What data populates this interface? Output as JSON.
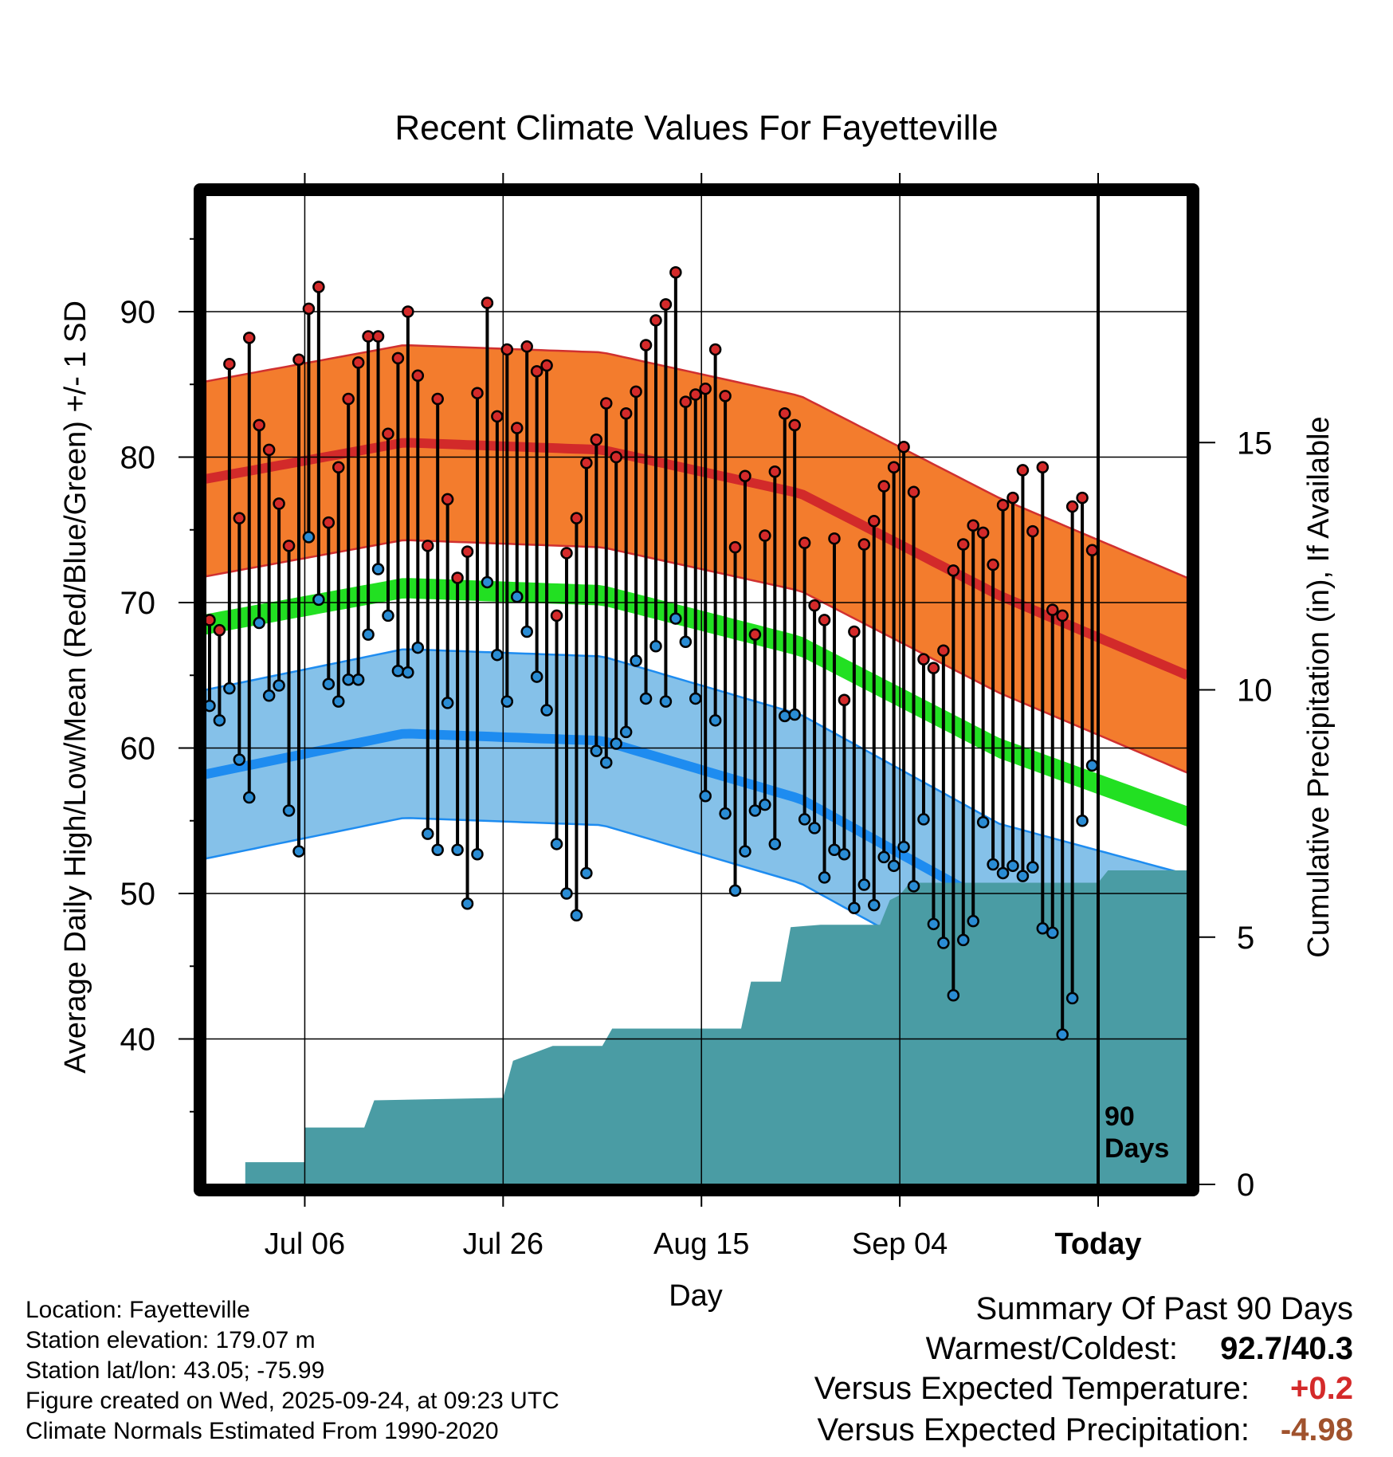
{
  "chart_data": {
    "type": "line",
    "title": "Recent Climate Values For Fayetteville",
    "xlabel": "Day",
    "ylabel": "Average Daily High/Low/Mean (Red/Blue/Green) +/- 1 SD",
    "y2label": "Cumulative Precipitation (in), If Available",
    "xlim": [
      0,
      99
    ],
    "ylim": [
      30,
      98
    ],
    "y2lim": [
      0,
      20
    ],
    "y_ticks": [
      40,
      50,
      60,
      70,
      80,
      90
    ],
    "y_tick_labels": [
      "40",
      "50",
      "60",
      "70",
      "80",
      "90"
    ],
    "y2_ticks": [
      0,
      5,
      10,
      15
    ],
    "y2_tick_labels": [
      "0",
      "5",
      "10",
      "15"
    ],
    "x_ticks": [
      10,
      30,
      50,
      70,
      90
    ],
    "x_tick_labels": [
      "Jul 06",
      "Jul 26",
      "Aug 15",
      "Sep 04",
      "Today"
    ],
    "today_index": 90,
    "today_label_line1": "90",
    "today_label_line2": "Days",
    "normal_high": [
      [
        0,
        78.5
      ],
      [
        20,
        81
      ],
      [
        40,
        80.5
      ],
      [
        60,
        77.5
      ],
      [
        80,
        70.5
      ],
      [
        99,
        65
      ]
    ],
    "normal_low": [
      [
        0,
        58.2
      ],
      [
        20,
        61
      ],
      [
        40,
        60.5
      ],
      [
        60,
        56.5
      ],
      [
        80,
        49
      ],
      [
        99,
        45.5
      ]
    ],
    "normal_mean": [
      [
        0,
        68.5
      ],
      [
        20,
        71
      ],
      [
        40,
        70.5
      ],
      [
        60,
        67
      ],
      [
        80,
        60
      ],
      [
        99,
        55.3
      ]
    ],
    "high_sd": 6.7,
    "low_sd": 5.8,
    "mean_band_halfwidth": 0.7,
    "series": [
      {
        "name": "Daily High",
        "color": "#d42a2a",
        "values": [
          68.8,
          68.1,
          86.4,
          75.8,
          88.2,
          82.2,
          80.5,
          76.8,
          73.9,
          86.7,
          90.2,
          91.7,
          75.5,
          79.3,
          84.0,
          86.5,
          88.3,
          88.3,
          81.6,
          86.8,
          90.0,
          85.6,
          73.9,
          84.0,
          77.1,
          71.7,
          73.5,
          84.4,
          90.6,
          82.8,
          87.4,
          82.0,
          87.6,
          85.9,
          86.3,
          69.1,
          73.4,
          75.8,
          79.6,
          81.2,
          83.7,
          80.0,
          83.0,
          84.5,
          87.7,
          89.4,
          90.5,
          92.7,
          83.8,
          84.3,
          84.7,
          87.4,
          84.2,
          73.8,
          78.7,
          67.8,
          74.6,
          79.0,
          83.0,
          82.2,
          74.1,
          69.8,
          68.8,
          74.4,
          63.3,
          68.0,
          74.0,
          75.6,
          78.0,
          79.3,
          80.7,
          77.6,
          66.1,
          65.5,
          66.7,
          72.2,
          74.0,
          75.3,
          74.8,
          72.6,
          76.7,
          77.2,
          79.1,
          74.9,
          79.3,
          69.5,
          69.1,
          76.6,
          77.2,
          73.6
        ]
      },
      {
        "name": "Daily Low",
        "color": "#2a8cd4",
        "values": [
          62.9,
          61.9,
          64.1,
          59.2,
          56.6,
          68.6,
          63.6,
          64.3,
          55.7,
          52.9,
          74.5,
          70.2,
          64.4,
          63.2,
          64.7,
          64.7,
          67.8,
          72.3,
          69.1,
          65.3,
          65.2,
          66.9,
          54.1,
          53.0,
          63.1,
          53.0,
          49.3,
          52.7,
          71.4,
          66.4,
          63.2,
          70.4,
          68.0,
          64.9,
          62.6,
          53.4,
          50.0,
          48.5,
          51.4,
          59.8,
          59.0,
          60.3,
          61.1,
          66.0,
          63.4,
          67.0,
          63.2,
          68.9,
          67.3,
          63.4,
          56.7,
          61.9,
          55.5,
          50.2,
          52.9,
          55.7,
          56.1,
          53.4,
          62.2,
          62.3,
          55.1,
          54.5,
          51.1,
          53.0,
          52.7,
          49.0,
          50.6,
          49.2,
          52.5,
          51.9,
          53.2,
          50.5,
          55.1,
          47.9,
          46.6,
          43.0,
          46.8,
          48.1,
          54.9,
          52.0,
          51.4,
          51.9,
          51.2,
          51.8,
          47.6,
          47.3,
          40.3,
          42.8,
          55.0,
          58.8
        ]
      },
      {
        "name": "Cumulative Precipitation",
        "color": "#4a9ca4",
        "axis": "right",
        "values": [
          [
            4,
            0.45
          ],
          [
            10,
            0.45
          ],
          [
            10,
            1.15
          ],
          [
            16,
            1.15
          ],
          [
            17,
            1.7
          ],
          [
            30,
            1.75
          ],
          [
            31,
            2.5
          ],
          [
            35,
            2.8
          ],
          [
            40,
            2.8
          ],
          [
            41,
            3.15
          ],
          [
            54,
            3.15
          ],
          [
            55,
            4.1
          ],
          [
            58,
            4.1
          ],
          [
            59,
            5.2
          ],
          [
            62,
            5.25
          ],
          [
            68,
            5.25
          ],
          [
            69,
            5.75
          ],
          [
            70,
            5.85
          ],
          [
            71,
            6.1
          ],
          [
            90,
            6.1
          ],
          [
            91,
            6.35
          ],
          [
            99,
            6.35
          ]
        ]
      }
    ]
  },
  "footer": {
    "location": "Location: Fayetteville",
    "elevation": "Station elevation: 179.07 m",
    "latlon": "Station lat/lon: 43.05; -75.99",
    "created": "Figure created on Wed, 2025-09-24, at 09:23 UTC",
    "normals": "Climate Normals Estimated From 1990-2020"
  },
  "summary": {
    "title": "Summary Of Past 90 Days",
    "warm_cold_label": "Warmest/Coldest:",
    "warm_cold_value": "92.7/40.3",
    "temp_label": "Versus Expected Temperature:",
    "temp_value": "+0.2",
    "temp_color": "#d42a2a",
    "precip_label": "Versus Expected Precipitation:",
    "precip_value": "-4.98",
    "precip_color": "#a0522d"
  },
  "colors": {
    "high_band": "#f37c2d",
    "high_line": "#d22a2a",
    "low_band": "#85c1e9",
    "low_line": "#1e8cf0",
    "mean_line": "#22e022",
    "precip": "#4a9ca4",
    "high_dot": "#d42a2a",
    "low_dot": "#2a8cd4"
  }
}
